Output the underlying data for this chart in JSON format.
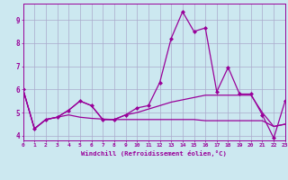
{
  "xlabel": "Windchill (Refroidissement éolien,°C)",
  "x": [
    0,
    1,
    2,
    3,
    4,
    5,
    6,
    7,
    8,
    9,
    10,
    11,
    12,
    13,
    14,
    15,
    16,
    17,
    18,
    19,
    20,
    21,
    22,
    23
  ],
  "line1": [
    6.0,
    4.3,
    4.7,
    4.8,
    5.1,
    5.5,
    5.3,
    4.7,
    4.7,
    4.9,
    5.2,
    5.3,
    6.3,
    8.2,
    9.35,
    8.5,
    8.65,
    5.9,
    6.95,
    5.8,
    5.8,
    4.9,
    3.9,
    5.5
  ],
  "line2": [
    6.0,
    4.3,
    4.7,
    4.8,
    5.1,
    5.5,
    5.3,
    4.7,
    4.7,
    4.9,
    5.0,
    5.15,
    5.3,
    5.45,
    5.55,
    5.65,
    5.75,
    5.75,
    5.75,
    5.75,
    5.75,
    5.0,
    4.4,
    4.5
  ],
  "line3": [
    6.0,
    4.3,
    4.7,
    4.8,
    4.9,
    4.8,
    4.75,
    4.72,
    4.7,
    4.7,
    4.7,
    4.7,
    4.7,
    4.7,
    4.7,
    4.7,
    4.65,
    4.65,
    4.65,
    4.65,
    4.65,
    4.65,
    4.4,
    4.5
  ],
  "color": "#990099",
  "bg_color": "#cce8f0",
  "grid_color": "#aaaacc",
  "ylim": [
    3.8,
    9.7
  ],
  "xlim": [
    0,
    23
  ]
}
